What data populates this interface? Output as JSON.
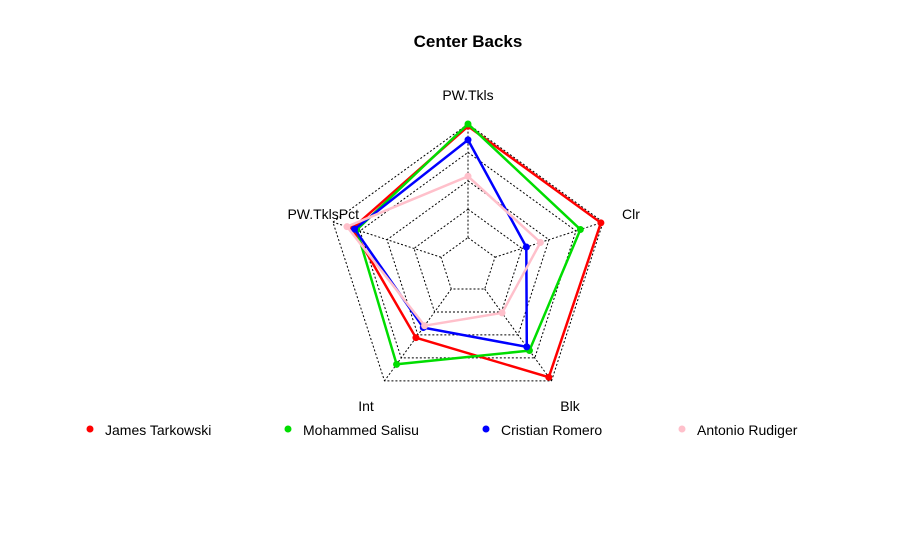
{
  "chart_data": {
    "type": "radar",
    "title": "Center Backs",
    "axes": [
      "PW.Tkls",
      "Clr",
      "Blk",
      "Int",
      "PW.TklsPct"
    ],
    "range": [
      0,
      1
    ],
    "grid_levels": 4,
    "grid": true,
    "legend_position": "bottom",
    "series": [
      {
        "name": "James Tarkowski",
        "color": "#ff0000",
        "values": [
          0.98,
          0.98,
          0.96,
          0.53,
          0.82
        ]
      },
      {
        "name": "Mohammed Salisu",
        "color": "#00dd00",
        "values": [
          1.0,
          0.79,
          0.67,
          0.82,
          0.78
        ]
      },
      {
        "name": "Cristian Romero",
        "color": "#0000ff",
        "values": [
          0.86,
          0.29,
          0.63,
          0.42,
          0.8
        ]
      },
      {
        "name": "Antonio Rudiger",
        "color": "#ffc0cb",
        "values": [
          0.54,
          0.42,
          0.26,
          0.4,
          0.87
        ]
      }
    ]
  }
}
